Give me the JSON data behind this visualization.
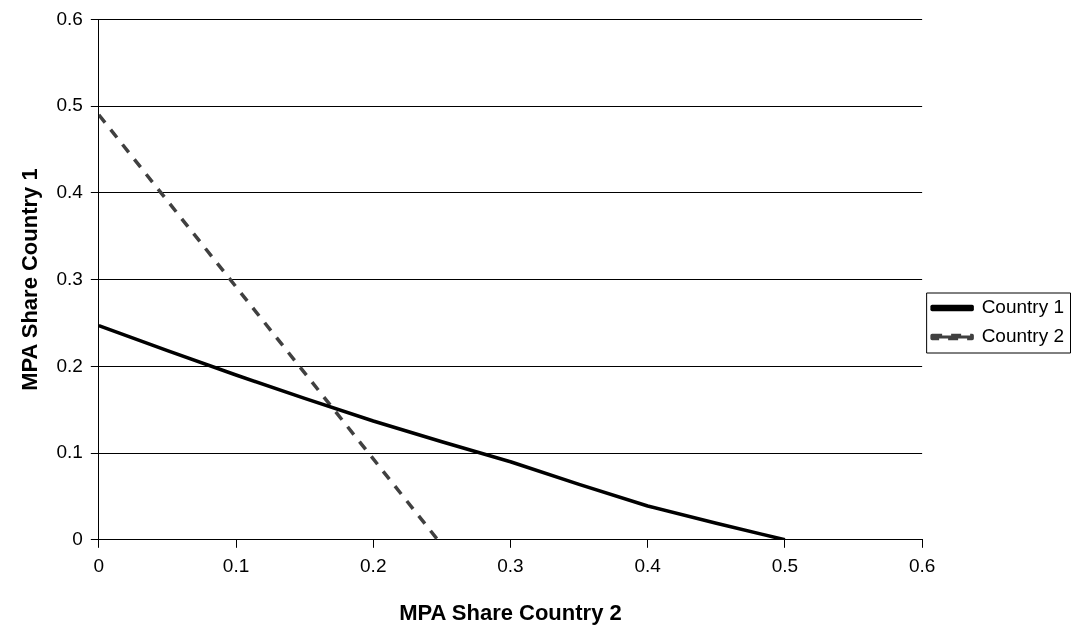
{
  "chart_data": {
    "type": "line",
    "xlabel": "MPA Share Country 2",
    "ylabel": "MPA Share Country 1",
    "xlim": [
      0,
      0.6
    ],
    "xticks": [
      0,
      0.1,
      0.2,
      0.3,
      0.4,
      0.5,
      0.6
    ],
    "ylim": [
      0,
      0.6
    ],
    "yticks": [
      0,
      0.1,
      0.2,
      0.3,
      0.4,
      0.5,
      0.6
    ],
    "grid": "y",
    "legend": "right",
    "marker": "none",
    "series": [
      {
        "name": "Country 1",
        "color": "#000000",
        "line_style": "solid",
        "x": [
          0,
          0.05,
          0.1,
          0.15,
          0.2,
          0.25,
          0.3,
          0.35,
          0.4,
          0.45,
          0.5
        ],
        "values": [
          0.247,
          0.218,
          0.19,
          0.163,
          0.137,
          0.113,
          0.09,
          0.064,
          0.039,
          0.019,
          0
        ]
      },
      {
        "name": "Country 2",
        "color": "#404040",
        "line_style": "dashed",
        "x": [
          0,
          0.247
        ],
        "values": [
          0.49,
          0
        ]
      }
    ]
  }
}
